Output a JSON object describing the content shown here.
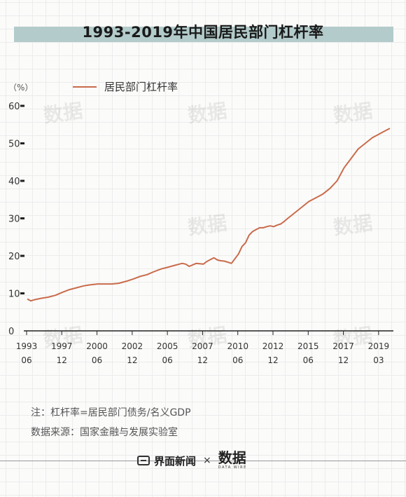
{
  "chart_data": {
    "type": "line",
    "title": "1993-2019年中国居民部门杠杆率",
    "unit_label": "（%）",
    "ylim": [
      0,
      60
    ],
    "yticks": [
      0,
      10,
      20,
      30,
      40,
      50,
      60
    ],
    "grid": false,
    "legend_position": "top-left",
    "xtick_labels": [
      {
        "year": "1993",
        "month": "06"
      },
      {
        "year": "1997",
        "month": "12"
      },
      {
        "year": "2000",
        "month": "06"
      },
      {
        "year": "2002",
        "month": "12"
      },
      {
        "year": "2005",
        "month": "06"
      },
      {
        "year": "2007",
        "month": "12"
      },
      {
        "year": "2010",
        "month": "06"
      },
      {
        "year": "2012",
        "month": "12"
      },
      {
        "year": "2015",
        "month": "06"
      },
      {
        "year": "2017",
        "month": "12"
      },
      {
        "year": "2019",
        "month": "03"
      }
    ],
    "x_unit": "year (decimal)",
    "series": [
      {
        "name": "居民部门杠杆率",
        "color": "#c96b4a",
        "x": [
          1993.5,
          1993.75,
          1994.0,
          1994.5,
          1995.0,
          1995.5,
          1996.0,
          1996.5,
          1997.0,
          1997.5,
          1998.0,
          1998.5,
          1999.0,
          1999.5,
          2000.0,
          2000.5,
          2001.0,
          2001.5,
          2002.0,
          2002.5,
          2003.0,
          2003.5,
          2004.0,
          2004.5,
          2004.75,
          2005.0,
          2005.25,
          2005.5,
          2006.0,
          2006.25,
          2006.5,
          2006.75,
          2007.0,
          2007.25,
          2007.5,
          2008.0,
          2008.5,
          2008.75,
          2009.0,
          2009.25,
          2009.5,
          2009.75,
          2010.0,
          2010.25,
          2010.5,
          2010.75,
          2011.0,
          2011.25,
          2011.5,
          2011.75,
          2012.0,
          2012.5,
          2013.0,
          2013.5,
          2014.0,
          2014.5,
          2015.0,
          2015.5,
          2016.0,
          2016.5,
          2017.0,
          2017.5,
          2018.0,
          2018.5,
          2018.75,
          2019.0,
          2019.25
        ],
        "values": [
          8.5,
          8.0,
          8.3,
          8.7,
          9.0,
          9.5,
          10.3,
          11.0,
          11.5,
          12.0,
          12.3,
          12.5,
          12.5,
          12.5,
          12.7,
          13.2,
          13.8,
          14.5,
          15.0,
          15.8,
          16.5,
          17.0,
          17.5,
          18.0,
          17.8,
          17.2,
          17.6,
          18.0,
          17.8,
          18.5,
          19.0,
          19.5,
          18.9,
          18.7,
          18.6,
          18.0,
          20.5,
          22.5,
          23.5,
          25.5,
          26.5,
          27.0,
          27.5,
          27.5,
          27.8,
          28.0,
          27.8,
          28.2,
          28.5,
          29.2,
          30.0,
          31.5,
          33.0,
          34.5,
          35.5,
          36.5,
          38.0,
          40.0,
          43.5,
          46.0,
          48.5,
          50.0,
          51.5,
          52.5,
          53.0,
          53.5,
          54.0
        ]
      }
    ]
  },
  "footnote_note": "注：杠杆率=居民部门债务/名义GDP",
  "footnote_source": "数据来源：国家金融与发展实验室",
  "footer": {
    "brand_name": "界面新闻",
    "separator": "×",
    "partner_logo": "数据",
    "partner_sub": "DATA WIRE"
  },
  "watermark_text": "数据"
}
